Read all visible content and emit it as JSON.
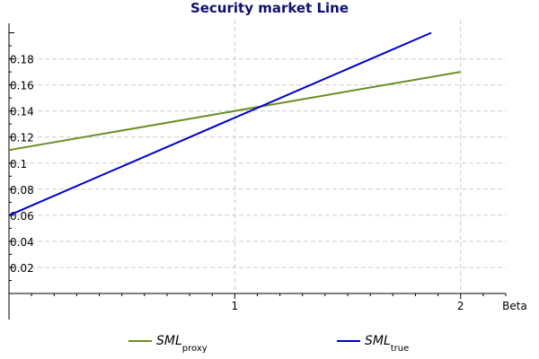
{
  "chart_data": {
    "type": "line",
    "title": "Security market Line",
    "xlabel": "Beta",
    "ylabel": "",
    "xlim": [
      0,
      2.2
    ],
    "ylim": [
      0,
      0.21
    ],
    "x_ticks": [
      1,
      2
    ],
    "x_tick_labels": [
      "1",
      "2"
    ],
    "y_ticks": [
      0.02,
      0.04,
      0.06,
      0.08,
      0.1,
      0.12,
      0.14,
      0.16,
      0.18
    ],
    "y_tick_labels": [
      "0.02",
      "0.04",
      "0.06",
      "0.08",
      "0.1",
      "0.12",
      "0.14",
      "0.16",
      "0.18"
    ],
    "grid": true,
    "legend_position": "bottom",
    "series": [
      {
        "name": "SML",
        "subscript": "proxy",
        "color": "#6b8e23",
        "x": [
          0,
          2
        ],
        "y": [
          0.11,
          0.17
        ]
      },
      {
        "name": "SML",
        "subscript": "true",
        "color": "#0000cc",
        "x": [
          0,
          1.87
        ],
        "y": [
          0.06,
          0.2
        ]
      }
    ]
  }
}
